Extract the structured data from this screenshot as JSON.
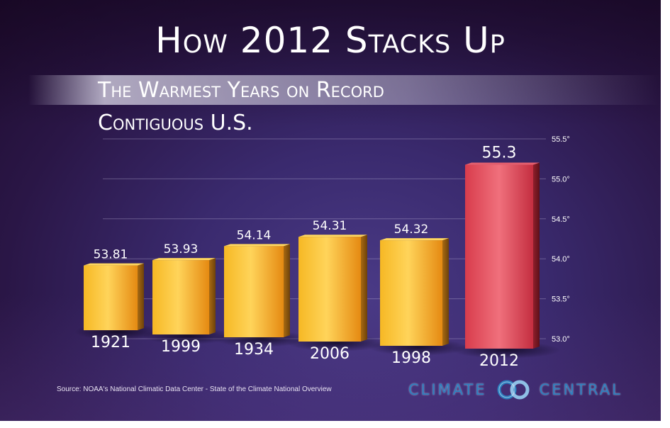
{
  "title": "How 2012 Stacks Up",
  "subtitle_1": "The Warmest Years on Record",
  "subtitle_2": "Contiguous U.S.",
  "source": "Source: NOAA's National Climatic Data Center - State of the Climate National Overview",
  "logo": {
    "left": "CLIMATE",
    "right": "CENTRAL",
    "icon": "interlocking-rings-icon"
  },
  "colors": {
    "bar": "#f2a21a",
    "highlight_bar": "#d63d4e",
    "text": "#ffffff"
  },
  "chart_data": {
    "type": "bar",
    "categories": [
      "1921",
      "1999",
      "1934",
      "2006",
      "1998",
      "2012"
    ],
    "values": [
      53.81,
      53.93,
      54.14,
      54.31,
      54.32,
      55.3
    ],
    "data_labels": [
      "53.81",
      "53.93",
      "54.14",
      "54.31",
      "54.32",
      "55.3"
    ],
    "highlight": "2012",
    "ylim": [
      53.0,
      55.5
    ],
    "yticks": [
      "53.0°",
      "53.5°",
      "54.0°",
      "54.5°",
      "55.0°",
      "55.5°"
    ],
    "ytick_values": [
      53.0,
      53.5,
      54.0,
      54.5,
      55.0,
      55.5
    ],
    "grid": true,
    "yaxis_position": "right"
  }
}
